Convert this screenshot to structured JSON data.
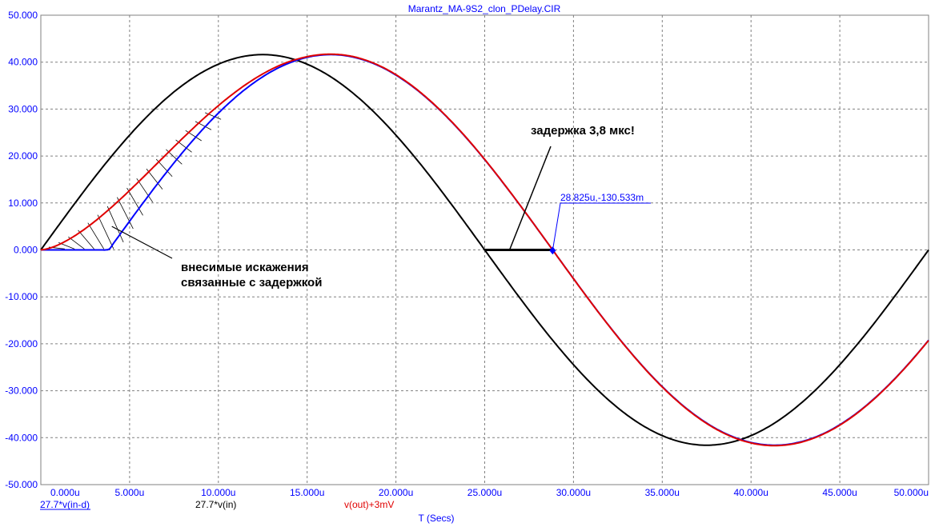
{
  "chart_data": {
    "type": "line",
    "title": "Marantz_MA-9S2_clon_PDelay.CIR",
    "xlabel": "T (Secs)",
    "ylabel": "",
    "xlim": [
      0,
      50
    ],
    "ylim": [
      -50,
      50
    ],
    "x_unit": "u",
    "grid": true,
    "x_ticks": [
      0,
      5,
      10,
      15,
      20,
      25,
      30,
      35,
      40,
      45,
      50
    ],
    "x_tick_labels": [
      "0.000u",
      "5.000u",
      "10.000u",
      "15.000u",
      "20.000u",
      "25.000u",
      "30.000u",
      "35.000u",
      "40.000u",
      "45.000u",
      "50.000u"
    ],
    "y_ticks": [
      50,
      40,
      30,
      20,
      10,
      0,
      -10,
      -20,
      -30,
      -40,
      -50
    ],
    "y_tick_labels": [
      "50.000",
      "40.000",
      "30.000",
      "20.000",
      "10.000",
      "0.000",
      "-10.000",
      "-20.000",
      "-30.000",
      "-40.000",
      "-50.000"
    ],
    "series": [
      {
        "name": "27.7*v(in-d)",
        "color": "#0000ff",
        "x": [
          0,
          1,
          2,
          3,
          3.8,
          5,
          6,
          7,
          8,
          9,
          10,
          11,
          12,
          13,
          14,
          15,
          16,
          16.3,
          17,
          18,
          19,
          20,
          21,
          22,
          23,
          24,
          25,
          26,
          27,
          28,
          28.825,
          30,
          31,
          32,
          33,
          34,
          35,
          36,
          37,
          38,
          39,
          40,
          41,
          41.3,
          42,
          43,
          44,
          45,
          46,
          47,
          48,
          49,
          50
        ],
        "y": [
          0,
          0,
          0,
          0,
          0,
          6.5,
          12.8,
          18.9,
          24.5,
          29.2,
          33.2,
          36.4,
          38.9,
          40.5,
          41.4,
          41.5,
          41.5,
          41.6,
          41.3,
          40.3,
          38.5,
          35.9,
          32.7,
          28.8,
          24.3,
          19.4,
          14.2,
          8.8,
          3.2,
          -2.4,
          -0.13,
          -7.9,
          -13.1,
          -18.7,
          -23.7,
          -28.2,
          -32.0,
          -35.2,
          -37.8,
          -39.6,
          -40.8,
          -41.4,
          -41.6,
          -41.6,
          -41.4,
          -40.6,
          -39.1,
          -36.9,
          -34.2,
          -30.7,
          -26.7,
          -22.3,
          -19.2
        ]
      },
      {
        "name": "27.7*v(in)",
        "color": "#000000",
        "x": [
          0,
          2.5,
          5,
          7.5,
          10,
          12.5,
          15,
          17.5,
          20,
          22.5,
          25,
          27.5,
          30,
          32.5,
          35,
          37.5,
          40,
          42.5,
          45,
          47.5,
          50
        ],
        "y": [
          0,
          12.86,
          24.46,
          33.66,
          39.58,
          41.6,
          39.58,
          33.66,
          24.46,
          12.86,
          0,
          -12.86,
          -24.46,
          -33.66,
          -39.58,
          -41.6,
          -39.58,
          -33.66,
          -24.46,
          -12.86,
          0
        ]
      },
      {
        "name": "v(out)+3mV",
        "color": "#e00000",
        "x": [
          0,
          1,
          2,
          3,
          4,
          5,
          6,
          7,
          8,
          9,
          10,
          11,
          12,
          13,
          14,
          15,
          16.3,
          17,
          18,
          19,
          20,
          21,
          22,
          23,
          24,
          25,
          26,
          27,
          28,
          28.8,
          30,
          31,
          32,
          33,
          34,
          35,
          36,
          37,
          38,
          39,
          40,
          41.3,
          42,
          43,
          44,
          45,
          46,
          47,
          48,
          49,
          50
        ],
        "y": [
          0,
          0.8,
          2.8,
          5.6,
          9.0,
          12.6,
          16.4,
          20.1,
          23.7,
          27.3,
          30.6,
          33.7,
          36.4,
          38.6,
          40.2,
          41.2,
          41.7,
          41.5,
          40.6,
          38.9,
          36.4,
          33.3,
          29.5,
          25.1,
          20.3,
          15.1,
          9.7,
          4.2,
          -1.4,
          -0.1,
          -7.0,
          -12.4,
          -17.9,
          -23.0,
          -27.6,
          -31.6,
          -34.9,
          -37.5,
          -39.5,
          -40.7,
          -41.3,
          -41.6,
          -41.4,
          -40.7,
          -39.3,
          -37.2,
          -34.5,
          -31.1,
          -27.2,
          -22.9,
          -19.2
        ]
      }
    ],
    "annotations": [
      {
        "text": "внесимые искажения"
      },
      {
        "text": "связанные с задержкой"
      },
      {
        "text": "задержка 3,8 мкс!"
      }
    ],
    "cursor": {
      "x": 28.825,
      "y": -0.130533,
      "label": "28.825u,-130.533m"
    },
    "delay_bar": {
      "x_start": 25.0,
      "x_end": 28.825,
      "y": 0
    }
  },
  "legend": [
    {
      "name": "27.7*v(in-d)",
      "color": "#0000ff",
      "underline": true
    },
    {
      "name": "27.7*v(in)",
      "color": "#000000",
      "underline": false
    },
    {
      "name": "v(out)+3mV",
      "color": "#e00000",
      "underline": false
    }
  ]
}
